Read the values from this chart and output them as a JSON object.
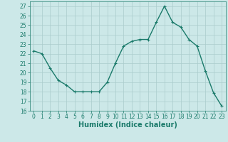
{
  "x": [
    0,
    1,
    2,
    3,
    4,
    5,
    6,
    7,
    8,
    9,
    10,
    11,
    12,
    13,
    14,
    15,
    16,
    17,
    18,
    19,
    20,
    21,
    22,
    23
  ],
  "y": [
    22.3,
    22.0,
    20.5,
    19.2,
    18.7,
    18.0,
    18.0,
    18.0,
    18.0,
    19.0,
    21.0,
    22.8,
    23.3,
    23.5,
    23.5,
    25.3,
    27.0,
    25.3,
    24.8,
    23.5,
    22.8,
    20.2,
    17.9,
    16.5
  ],
  "line_color": "#1a7a6a",
  "marker": "+",
  "marker_size": 3,
  "bg_color": "#cce8e8",
  "grid_color": "#aacccc",
  "xlabel": "Humidex (Indice chaleur)",
  "ylim": [
    16,
    27.5
  ],
  "xlim": [
    -0.5,
    23.5
  ],
  "yticks": [
    16,
    17,
    18,
    19,
    20,
    21,
    22,
    23,
    24,
    25,
    26,
    27
  ],
  "xticks": [
    0,
    1,
    2,
    3,
    4,
    5,
    6,
    7,
    8,
    9,
    10,
    11,
    12,
    13,
    14,
    15,
    16,
    17,
    18,
    19,
    20,
    21,
    22,
    23
  ],
  "tick_label_fontsize": 5.5,
  "xlabel_fontsize": 7.0,
  "linewidth": 1.0,
  "markeredgewidth": 0.8
}
